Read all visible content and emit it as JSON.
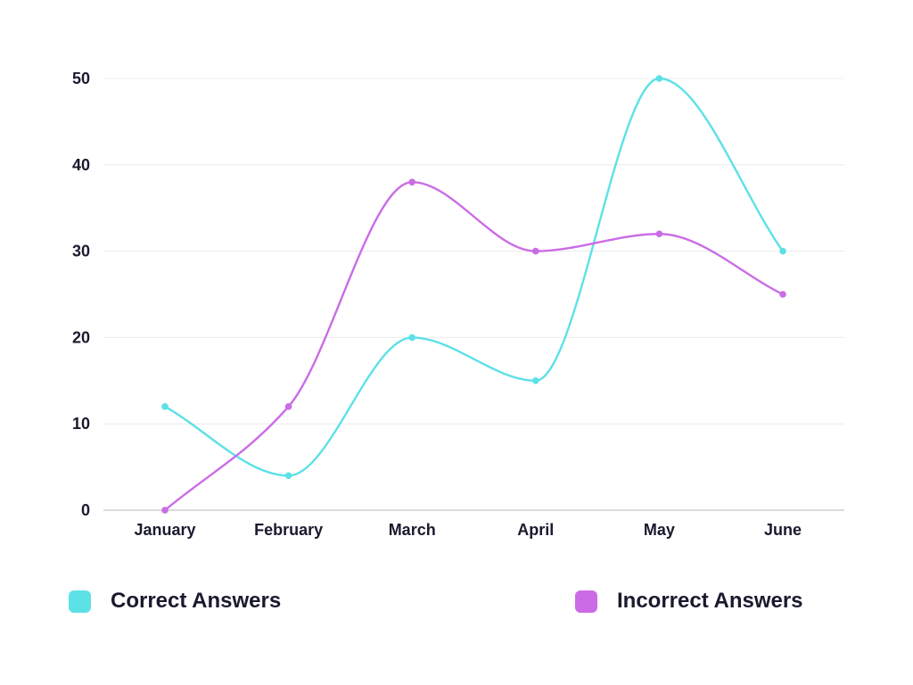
{
  "chart_data": {
    "type": "line",
    "categories": [
      "January",
      "February",
      "March",
      "April",
      "May",
      "June"
    ],
    "ylim": [
      0,
      50
    ],
    "yticks": [
      0,
      10,
      20,
      30,
      40,
      50
    ],
    "grid": true,
    "legend_position": "bottom",
    "series": [
      {
        "name": "Correct Answers",
        "color": "#5ce1e6",
        "values": [
          12,
          4,
          20,
          15,
          50,
          30
        ]
      },
      {
        "name": "Incorrect Answers",
        "color": "#cb6ce6",
        "values": [
          0,
          12,
          38,
          30,
          32,
          25
        ]
      }
    ]
  }
}
